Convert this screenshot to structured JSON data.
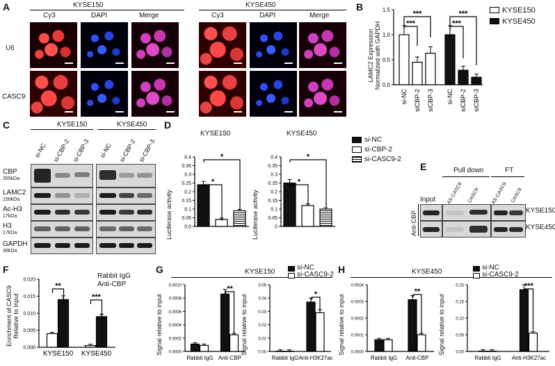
{
  "panels": {
    "A": {
      "label": "A",
      "groups": [
        "KYSE150",
        "KYSE450"
      ],
      "channels": [
        "Cy3",
        "DAPI",
        "Merge"
      ],
      "rows": [
        "U6",
        "CASC9"
      ]
    },
    "B": {
      "label": "B",
      "ylabel": "LAMC2 Expression\nNormalized with GAPDH",
      "legend": [
        "KYSE150",
        "KYSE450"
      ],
      "sig": [
        "***",
        "***",
        "***",
        "***"
      ]
    },
    "C": {
      "label": "C",
      "groups": [
        "KYSE150",
        "KYSE450"
      ],
      "lanes": [
        "si-NC",
        "si-CBP-2",
        "si-CBP-3"
      ],
      "proteins": [
        {
          "name": "CBP",
          "size": "265kDa"
        },
        {
          "name": "LAMC2",
          "size": "150kDa"
        },
        {
          "name": "Ac-H3",
          "size": "17kDa"
        },
        {
          "name": "H3",
          "size": "17kDa"
        },
        {
          "name": "GAPDH",
          "size": "36kDa"
        }
      ]
    },
    "D": {
      "label": "D",
      "ylabel": "Luciferase activity",
      "legend": [
        "si-NC",
        "si-CBP-2",
        "si-CASC9-2"
      ],
      "sig": "*"
    },
    "E": {
      "label": "E",
      "header_pulldown": "Pull down",
      "header_ft": "FT",
      "input": "Input",
      "lanes": [
        "AS-CASC9",
        "CASC9",
        "AS-CASC9",
        "CASC9"
      ],
      "antibody": "Anti-CBP",
      "cells": [
        "KYSE150",
        "KYSE450"
      ]
    },
    "F": {
      "label": "F",
      "ylabel": "Enrichment of CASC9\nRelative to Input",
      "legend": [
        "Rabbit IgG",
        "Anti-CBP"
      ],
      "sig": [
        "**",
        "***"
      ]
    },
    "G": {
      "label": "G",
      "title": "KYSE150",
      "legend": [
        "si-NC",
        "si-CASC9-2"
      ],
      "ylabel": "Signal relative to input",
      "sig": [
        "**",
        "*"
      ]
    },
    "H": {
      "label": "H",
      "title": "KYSE450",
      "legend": [
        "si-NC",
        "si-CASC9-2"
      ],
      "ylabel": "Signal relative to input",
      "sig": [
        "**",
        "***"
      ]
    }
  },
  "chart_data": [
    {
      "panel": "B",
      "type": "bar",
      "categories": [
        "si-NC",
        "siCBP-2",
        "siCBP-3"
      ],
      "series": [
        {
          "name": "KYSE150",
          "values": [
            1.0,
            0.45,
            0.63
          ]
        },
        {
          "name": "KYSE450",
          "values": [
            1.0,
            0.29,
            0.15
          ]
        }
      ],
      "ylim": [
        0,
        1.5
      ],
      "yticks": [
        "0.0",
        "0.5",
        "1.0",
        "1.5"
      ]
    },
    {
      "panel": "D-KYSE150",
      "type": "bar",
      "title": "KYSE150",
      "categories": [
        "si-NC",
        "si-CBP-2",
        "si-CASC9-2"
      ],
      "values": [
        0.24,
        0.04,
        0.09
      ],
      "ylim": [
        0,
        0.4
      ],
      "yticks": [
        "0.0",
        "0.05",
        "0.1",
        "0.15",
        "0.2",
        "0.25",
        "0.3",
        "0.35",
        "0.4"
      ]
    },
    {
      "panel": "D-KYSE450",
      "type": "bar",
      "title": "KYSE450",
      "categories": [
        "si-NC",
        "si-CBP-2",
        "si-CASC9-2"
      ],
      "values": [
        0.25,
        0.12,
        0.1
      ],
      "ylim": [
        0,
        0.4
      ],
      "yticks": [
        "0",
        "0.05",
        "0.1",
        "0.15",
        "0.2",
        "0.25",
        "0.3",
        "0.35",
        "0.4"
      ]
    },
    {
      "panel": "F",
      "type": "bar",
      "categories": [
        "KYSE150",
        "KYSE450"
      ],
      "series": [
        {
          "name": "Rabbit IgG",
          "values": [
            0.004,
            0.0005
          ]
        },
        {
          "name": "Anti-CBP",
          "values": [
            0.014,
            0.009
          ]
        }
      ],
      "ylim": [
        0,
        0.02
      ],
      "yticks": [
        "0.000",
        "0.005",
        "0.010",
        "0.015",
        "0.020"
      ]
    },
    {
      "panel": "G-left",
      "type": "bar",
      "categories": [
        "Rabbit IgG",
        "Anti-CBP"
      ],
      "series": [
        {
          "name": "si-NC",
          "values": [
            0.00011,
            0.00086
          ]
        },
        {
          "name": "si-CASC9-2",
          "values": [
            9e-05,
            0.00025
          ]
        }
      ],
      "ylim": [
        0,
        0.001
      ],
      "yticks": [
        "0.0000",
        "0.0002",
        "0.0004",
        "0.0006",
        "0.0008",
        "0.0010"
      ]
    },
    {
      "panel": "G-right",
      "type": "bar",
      "categories": [
        "Rabbit IgG",
        "Anti-H3K27ac"
      ],
      "series": [
        {
          "name": "si-NC",
          "values": [
            0.0002,
            0.037
          ]
        },
        {
          "name": "si-CASC9-2",
          "values": [
            0.0002,
            0.029
          ]
        }
      ],
      "ylim": [
        0,
        0.05
      ],
      "yticks": [
        "0.00",
        "0.01",
        "0.02",
        "0.03",
        "0.04",
        "0.05"
      ]
    },
    {
      "panel": "H-left",
      "type": "bar",
      "categories": [
        "Rabbit IgG",
        "Anti-CBP"
      ],
      "series": [
        {
          "name": "si-NC",
          "values": [
            7e-05,
            0.00031
          ]
        },
        {
          "name": "si-CASC9-2",
          "values": [
            7e-05,
            0.0001
          ]
        }
      ],
      "ylim": [
        0,
        0.0004
      ],
      "yticks": [
        "0.0000",
        "0.0001",
        "0.0002",
        "0.0003",
        "0.0004"
      ]
    },
    {
      "panel": "H-right",
      "type": "bar",
      "categories": [
        "Rabbit IgG",
        "Anti-H3K27ac"
      ],
      "series": [
        {
          "name": "si-NC",
          "values": [
            0.001,
            0.185
          ]
        },
        {
          "name": "si-CASC9-2",
          "values": [
            0.001,
            0.055
          ]
        }
      ],
      "ylim": [
        0,
        0.2
      ],
      "yticks": [
        "0.00",
        "0.05",
        "0.10",
        "0.15",
        "0.20"
      ]
    }
  ]
}
